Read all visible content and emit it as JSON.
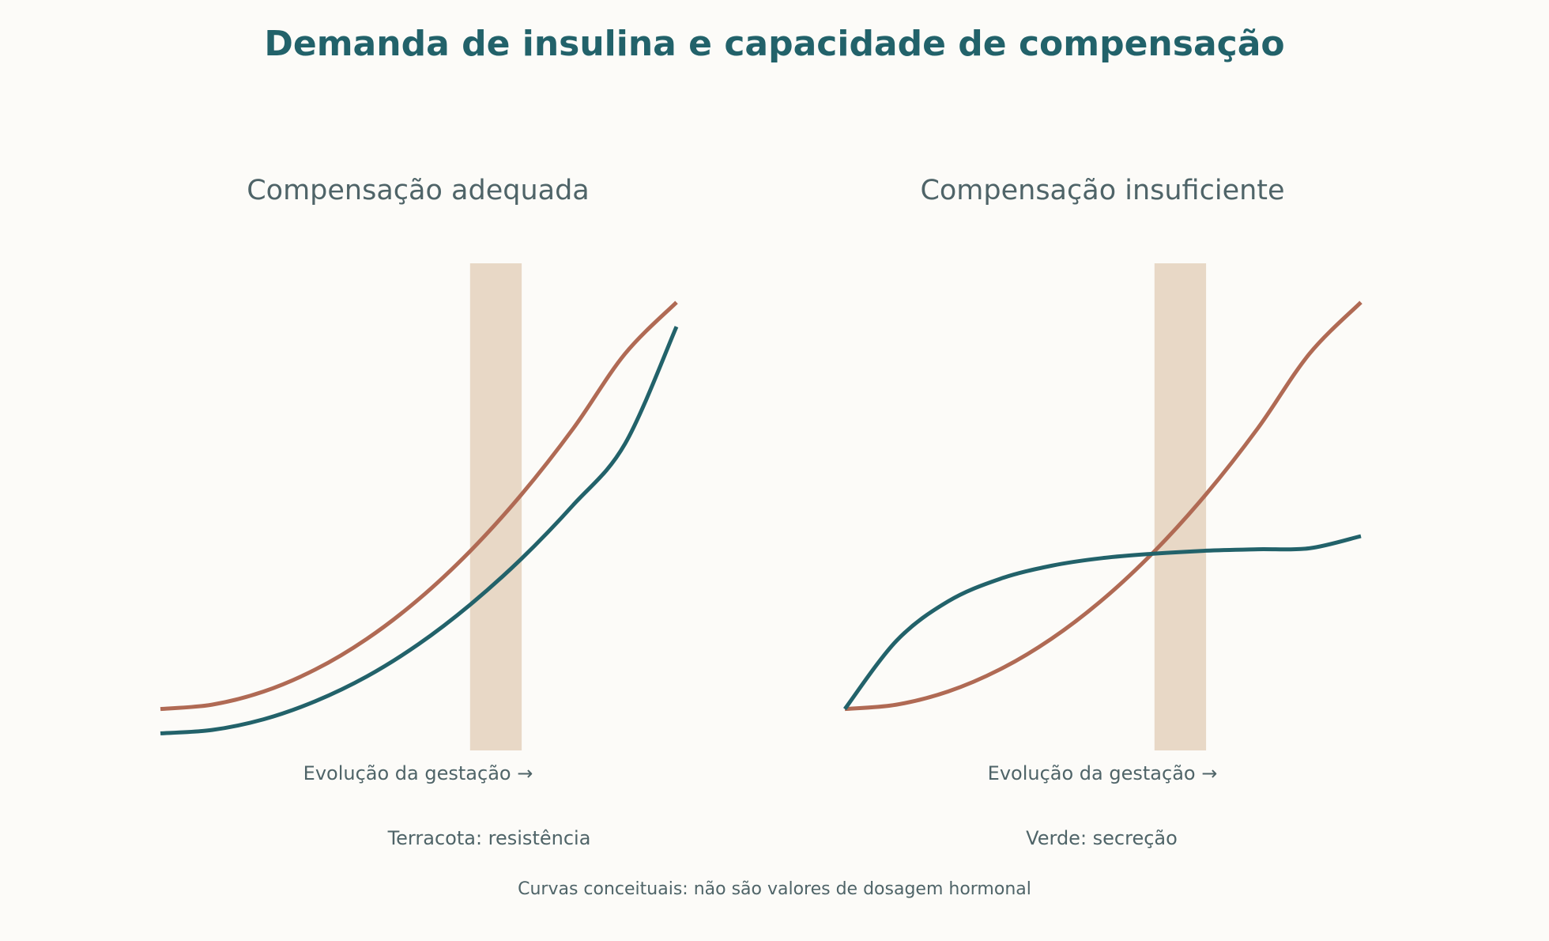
{
  "title": "Demanda de insulina e capacidade de compensação",
  "legend": {
    "left": "Terracota: resistência",
    "right": "Verde: secreção"
  },
  "footnote": "Curvas conceituais: não são valores de dosagem hormonal",
  "colors": {
    "background": "#fcfbf8",
    "title": "#22626a",
    "text": "#4f6468",
    "resistance": "#b06a54",
    "secretion": "#22626a",
    "band": "#e8d8c6"
  },
  "chart_data": [
    {
      "type": "line",
      "title": "Compensação adequada",
      "xlabel": "Evolução da gestação →",
      "ylabel": "",
      "xlim": [
        0,
        1
      ],
      "ylim": [
        0,
        1
      ],
      "grid": false,
      "highlight_band": [
        0.6,
        0.7
      ],
      "x": [
        0,
        0.1,
        0.2,
        0.3,
        0.4,
        0.5,
        0.6,
        0.7,
        0.8,
        0.9,
        1.0
      ],
      "series": [
        {
          "role": "resistance",
          "values": [
            0.085,
            0.094,
            0.121,
            0.166,
            0.229,
            0.31,
            0.409,
            0.526,
            0.661,
            0.814,
            0.92
          ]
        },
        {
          "role": "secretion",
          "values": [
            0.035,
            0.042,
            0.064,
            0.101,
            0.152,
            0.218,
            0.299,
            0.394,
            0.504,
            0.629,
            0.87
          ]
        }
      ]
    },
    {
      "type": "line",
      "title": "Compensação insuficiente",
      "xlabel": "Evolução da gestação →",
      "ylabel": "",
      "xlim": [
        0,
        1
      ],
      "ylim": [
        0,
        1
      ],
      "grid": false,
      "highlight_band": [
        0.6,
        0.7
      ],
      "x": [
        0,
        0.1,
        0.2,
        0.3,
        0.4,
        0.5,
        0.6,
        0.7,
        0.8,
        0.9,
        1.0
      ],
      "series": [
        {
          "role": "resistance",
          "values": [
            0.085,
            0.094,
            0.121,
            0.166,
            0.229,
            0.31,
            0.409,
            0.526,
            0.661,
            0.814,
            0.92
          ]
        },
        {
          "role": "secretion",
          "values": [
            0.085,
            0.225,
            0.306,
            0.352,
            0.379,
            0.395,
            0.404,
            0.41,
            0.413,
            0.415,
            0.44
          ]
        }
      ]
    }
  ]
}
